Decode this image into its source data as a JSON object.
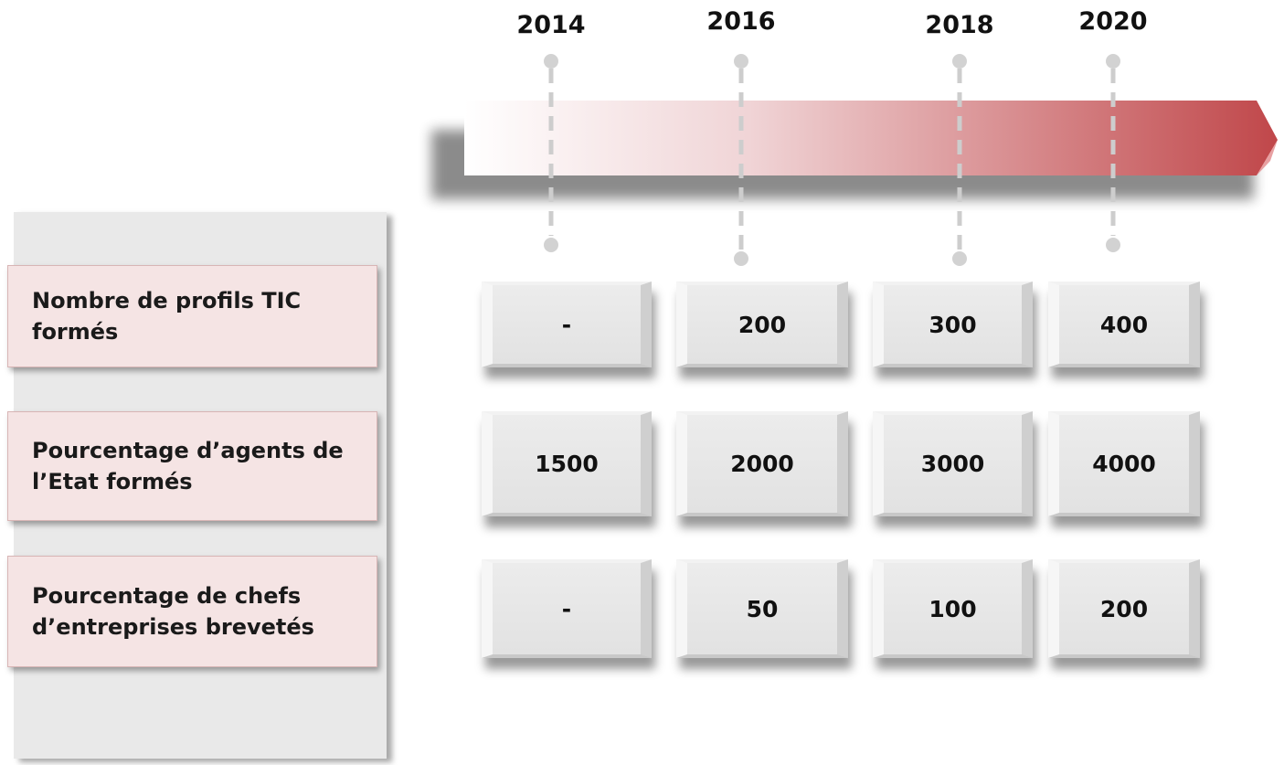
{
  "years": [
    "2014",
    "2016",
    "2018",
    "2020"
  ],
  "rows": [
    {
      "label": "Nombre de profils TIC formés",
      "values": [
        "-",
        200,
        300,
        400
      ]
    },
    {
      "label": "Pourcentage d’agents de l’Etat formés",
      "values": [
        1500,
        2000,
        3000,
        4000
      ]
    },
    {
      "label": "Pourcentage de chefs d’entreprises brevetés",
      "values": [
        "-",
        50,
        100,
        200
      ]
    }
  ]
}
